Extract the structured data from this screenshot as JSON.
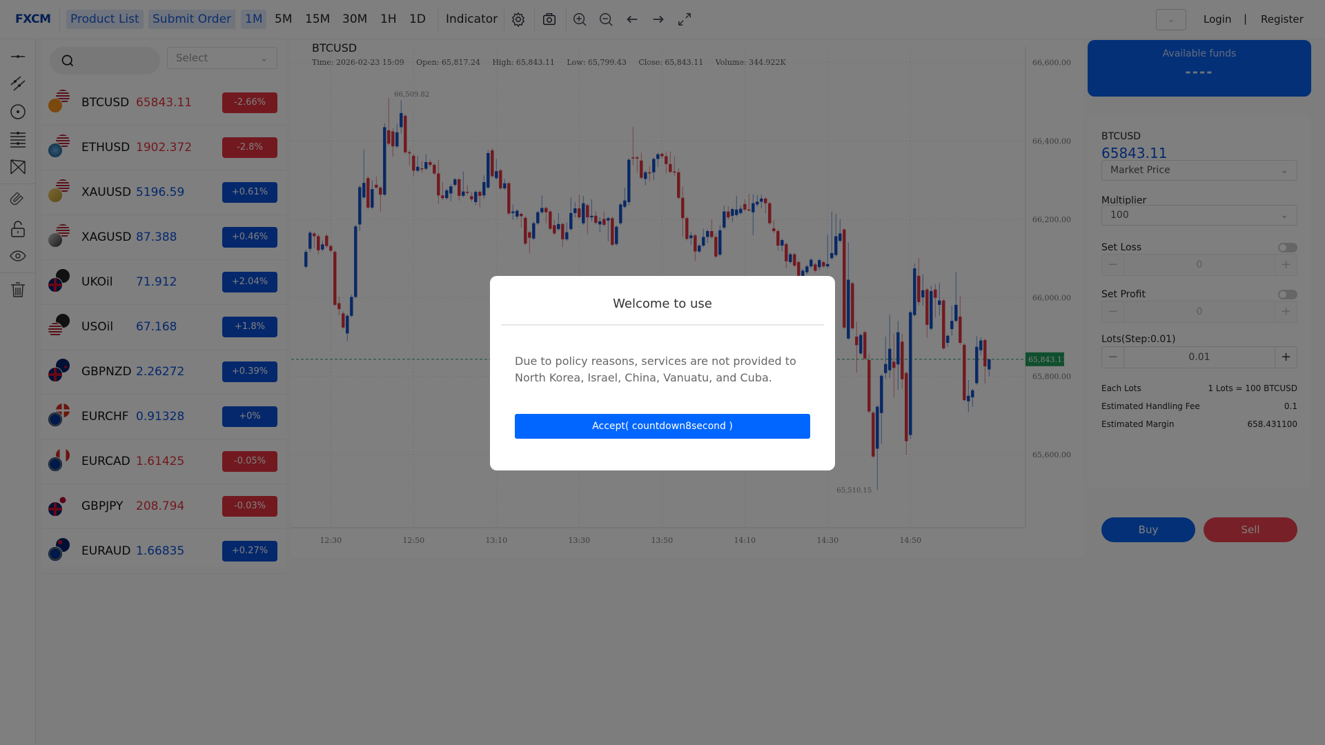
{
  "header": {
    "logo": "FXCM",
    "nav": [
      "Product List",
      "Submit Order"
    ],
    "timeframes": [
      "1M",
      "5M",
      "15M",
      "30M",
      "1H",
      "1D"
    ],
    "selected_timeframe": "1M",
    "indicator": "Indicator",
    "login": "Login",
    "divider": "|",
    "register": "Register"
  },
  "list": {
    "select_placeholder": "Select",
    "items": [
      {
        "symbol": "BTCUSD",
        "price": "65843.11",
        "change": "-2.66%",
        "dir": "down",
        "flags": [
          "us",
          "btc"
        ]
      },
      {
        "symbol": "ETHUSD",
        "price": "1902.372",
        "change": "-2.8%",
        "dir": "down",
        "flags": [
          "us",
          "eth"
        ]
      },
      {
        "symbol": "XAUUSD",
        "price": "5196.59",
        "change": "+0.61%",
        "dir": "up",
        "flags": [
          "us",
          "gold"
        ]
      },
      {
        "symbol": "XAGUSD",
        "price": "87.388",
        "change": "+0.46%",
        "dir": "up",
        "flags": [
          "us",
          "silver"
        ]
      },
      {
        "symbol": "UKOil",
        "price": "71.912",
        "change": "+2.04%",
        "dir": "up",
        "flags": [
          "oil",
          "gb"
        ]
      },
      {
        "symbol": "USOil",
        "price": "67.168",
        "change": "+1.8%",
        "dir": "up",
        "flags": [
          "oil",
          "us"
        ]
      },
      {
        "symbol": "GBPNZD",
        "price": "2.26272",
        "change": "+0.39%",
        "dir": "up",
        "flags": [
          "nz",
          "gb"
        ]
      },
      {
        "symbol": "EURCHF",
        "price": "0.91328",
        "change": "+0%",
        "dir": "up",
        "flags": [
          "ch",
          "eu"
        ]
      },
      {
        "symbol": "EURCAD",
        "price": "1.61425",
        "change": "-0.05%",
        "dir": "down",
        "flags": [
          "ca",
          "eu"
        ]
      },
      {
        "symbol": "GBPJPY",
        "price": "208.794",
        "change": "-0.03%",
        "dir": "down",
        "flags": [
          "jp",
          "gb"
        ]
      },
      {
        "symbol": "EURAUD",
        "price": "1.66835",
        "change": "+0.27%",
        "dir": "up",
        "flags": [
          "au",
          "eu"
        ]
      }
    ]
  },
  "colors": {
    "up": "#0a50d8",
    "down": "#e5323f",
    "accent": "#0066ff",
    "last_price": "#1f9e5a"
  },
  "chart": {
    "symbol": "BTCUSD",
    "ohlc_line": {
      "time": "Time: 2026-02-23 15:09",
      "open": "Open: 65,817.24",
      "high": "High: 65,843.11",
      "low": "Low: 65,799.43",
      "close": "Close: 65,843.11",
      "volume": "Volume: 344.922K"
    }
  },
  "chart_data": {
    "type": "candlestick",
    "interval": "1m",
    "start_time": "12:24",
    "end_time": "15:09",
    "ylim": [
      65450,
      66630
    ],
    "yticks": [
      "65,600.00",
      "65,800.00",
      "66,000.00",
      "66,200.00",
      "66,400.00",
      "66,600.00"
    ],
    "ytick_values": [
      65600,
      65800,
      66000,
      66200,
      66400,
      66600
    ],
    "xticks": [
      "12:30",
      "12:50",
      "13:10",
      "13:30",
      "13:50",
      "14:10",
      "14:30",
      "14:50"
    ],
    "last_price": "65,843.11",
    "last_price_value": 65843.11,
    "annotations": [
      {
        "label": "66,509.82",
        "value": 66509.82,
        "type": "high"
      },
      {
        "label": "65,510.15",
        "value": 65510.15,
        "type": "low"
      }
    ],
    "grid": true,
    "up_color": "blue",
    "down_color": "red",
    "ohlc": [
      [
        66079,
        66123,
        66075,
        66117
      ],
      [
        66125,
        66170,
        66117,
        66166
      ],
      [
        66164,
        66168,
        66126,
        66157
      ],
      [
        66157,
        66162,
        66110,
        66121
      ],
      [
        66123,
        66146,
        66118,
        66136
      ],
      [
        66158,
        66163,
        66128,
        66132
      ],
      [
        66132,
        66136,
        66115,
        66120
      ],
      [
        66117,
        66121,
        65978,
        65982
      ],
      [
        65986,
        66003,
        65956,
        65971
      ],
      [
        65960,
        65965,
        65921,
        65924
      ],
      [
        65909,
        65958,
        65889,
        65954
      ],
      [
        65954,
        66008,
        65950,
        66002
      ],
      [
        66002,
        66186,
        65998,
        66182
      ],
      [
        66187,
        66287,
        66170,
        66282
      ],
      [
        66256,
        66378,
        66252,
        66293
      ],
      [
        66305,
        66310,
        66226,
        66230
      ],
      [
        66230,
        66300,
        66226,
        66277
      ],
      [
        66288,
        66309,
        66278,
        66281
      ],
      [
        66281,
        66285,
        66220,
        66263
      ],
      [
        66263,
        66445,
        66259,
        66435
      ],
      [
        66427,
        66510,
        66388,
        66393
      ],
      [
        66424,
        66432,
        66360,
        66386
      ],
      [
        66386,
        66444,
        66382,
        66422
      ],
      [
        66435,
        66504,
        66419,
        66471
      ],
      [
        66464,
        66468,
        66366,
        66371
      ],
      [
        66371,
        66377,
        66337,
        66369
      ],
      [
        66362,
        66367,
        66310,
        66324
      ],
      [
        66324,
        66361,
        66320,
        66334
      ],
      [
        66330,
        66349,
        66319,
        66329
      ],
      [
        66329,
        66366,
        66325,
        66346
      ],
      [
        66346,
        66352,
        66334,
        66339
      ],
      [
        66339,
        66343,
        66313,
        66317
      ],
      [
        66317,
        66352,
        66240,
        66261
      ],
      [
        66261,
        66295,
        66249,
        66254
      ],
      [
        66254,
        66278,
        66250,
        66274
      ],
      [
        66266,
        66289,
        66246,
        66284
      ],
      [
        66288,
        66306,
        66284,
        66302
      ],
      [
        66302,
        66306,
        66248,
        66260
      ],
      [
        66260,
        66322,
        66256,
        66271
      ],
      [
        66270,
        66287,
        66262,
        66268
      ],
      [
        66259,
        66270,
        66245,
        66251
      ],
      [
        66244,
        66274,
        66236,
        66270
      ],
      [
        66270,
        66274,
        66231,
        66260
      ],
      [
        66261,
        66312,
        66253,
        66295
      ],
      [
        66281,
        66377,
        66277,
        66369
      ],
      [
        66376,
        66382,
        66306,
        66310
      ],
      [
        66305,
        66354,
        66301,
        66323
      ],
      [
        66325,
        66329,
        66275,
        66279
      ],
      [
        66279,
        66303,
        66275,
        66292
      ],
      [
        66292,
        66296,
        66211,
        66215
      ],
      [
        66216,
        66238,
        66199,
        66220
      ],
      [
        66207,
        66226,
        66200,
        66222
      ],
      [
        66214,
        66218,
        66179,
        66208
      ],
      [
        66204,
        66208,
        66134,
        66138
      ],
      [
        66167,
        66171,
        66113,
        66153
      ],
      [
        66151,
        66194,
        66147,
        66190
      ],
      [
        66190,
        66222,
        66186,
        66218
      ],
      [
        66218,
        66261,
        66214,
        66229
      ],
      [
        66229,
        66233,
        66190,
        66218
      ],
      [
        66220,
        66224,
        66172,
        66176
      ],
      [
        66185,
        66198,
        66160,
        66164
      ],
      [
        66175,
        66216,
        66171,
        66188
      ],
      [
        66188,
        66192,
        66129,
        66149
      ],
      [
        66149,
        66192,
        66145,
        66167
      ],
      [
        66175,
        66256,
        66171,
        66216
      ],
      [
        66216,
        66244,
        66205,
        66228
      ],
      [
        66228,
        66263,
        66201,
        66205
      ],
      [
        66190,
        66260,
        66186,
        66241
      ],
      [
        66236,
        66240,
        66162,
        66205
      ],
      [
        66205,
        66251,
        66195,
        66209
      ],
      [
        66209,
        66221,
        66187,
        66191
      ],
      [
        66187,
        66205,
        66167,
        66195
      ],
      [
        66201,
        66220,
        66182,
        66186
      ],
      [
        66197,
        66207,
        66144,
        66203
      ],
      [
        66203,
        66207,
        66131,
        66135
      ],
      [
        66137,
        66185,
        66133,
        66181
      ],
      [
        66190,
        66242,
        66186,
        66238
      ],
      [
        66232,
        66281,
        66228,
        66248
      ],
      [
        66244,
        66356,
        66236,
        66352
      ],
      [
        66358,
        66436,
        66338,
        66357
      ],
      [
        66358,
        66362,
        66319,
        66355
      ],
      [
        66350,
        66370,
        66302,
        66306
      ],
      [
        66303,
        66324,
        66287,
        66320
      ],
      [
        66320,
        66336,
        66297,
        66318
      ],
      [
        66320,
        66358,
        66300,
        66354
      ],
      [
        66354,
        66370,
        66334,
        66366
      ],
      [
        66367,
        66371,
        66355,
        66361
      ],
      [
        66361,
        66372,
        66317,
        66341
      ],
      [
        66341,
        66373,
        66317,
        66321
      ],
      [
        66322,
        66360,
        66311,
        66320
      ],
      [
        66320,
        66330,
        66251,
        66255
      ],
      [
        66255,
        66284,
        66155,
        66203
      ],
      [
        66203,
        66207,
        66146,
        66150
      ],
      [
        66152,
        66168,
        66135,
        66159
      ],
      [
        66159,
        66163,
        66094,
        66118
      ],
      [
        66118,
        66137,
        66114,
        66133
      ],
      [
        66133,
        66176,
        66129,
        66155
      ],
      [
        66155,
        66174,
        66139,
        66170
      ],
      [
        66170,
        66200,
        66151,
        66155
      ],
      [
        66155,
        66164,
        66101,
        66105
      ],
      [
        66110,
        66185,
        66106,
        66172
      ],
      [
        66179,
        66235,
        66175,
        66220
      ],
      [
        66220,
        66233,
        66199,
        66205
      ],
      [
        66209,
        66230,
        66193,
        66226
      ],
      [
        66211,
        66260,
        66207,
        66225
      ],
      [
        66216,
        66236,
        66212,
        66227
      ],
      [
        66239,
        66251,
        66221,
        66225
      ],
      [
        66225,
        66265,
        66221,
        66223
      ],
      [
        66218,
        66264,
        66159,
        66241
      ],
      [
        66238,
        66262,
        66232,
        66245
      ],
      [
        66245,
        66263,
        66228,
        66253
      ],
      [
        66253,
        66257,
        66215,
        66241
      ],
      [
        66241,
        66245,
        66186,
        66190
      ],
      [
        66177,
        66198,
        66165,
        66170
      ],
      [
        66170,
        66175,
        66120,
        66133
      ],
      [
        66133,
        66151,
        66118,
        66147
      ],
      [
        66137,
        66141,
        66075,
        66093
      ],
      [
        66091,
        66115,
        66087,
        66111
      ],
      [
        66111,
        66115,
        66078,
        66082
      ],
      [
        66091,
        66095,
        66050,
        66055
      ],
      [
        66040,
        66074,
        66035,
        66069
      ],
      [
        66065,
        66084,
        66060,
        66080
      ],
      [
        66080,
        66101,
        66076,
        66097
      ],
      [
        66085,
        66089,
        66065,
        66069
      ],
      [
        66078,
        66100,
        66070,
        66096
      ],
      [
        66091,
        66095,
        66076,
        66080
      ],
      [
        66080,
        66160,
        66076,
        66086
      ],
      [
        66101,
        66220,
        66097,
        66114
      ],
      [
        66109,
        66214,
        66105,
        66157
      ],
      [
        66145,
        66200,
        66141,
        66164
      ],
      [
        66174,
        66178,
        65920,
        65924
      ],
      [
        65896,
        66141,
        65892,
        66046
      ],
      [
        66037,
        66041,
        65918,
        65922
      ],
      [
        65901,
        65939,
        65809,
        65879
      ],
      [
        65858,
        65909,
        65854,
        65905
      ],
      [
        65912,
        65916,
        65841,
        65845
      ],
      [
        65841,
        65858,
        65706,
        65710
      ],
      [
        65707,
        65711,
        65591,
        65595
      ],
      [
        65615,
        65726,
        65510,
        65722
      ],
      [
        65706,
        65805,
        65627,
        65801
      ],
      [
        65808,
        65901,
        65794,
        65831
      ],
      [
        65815,
        65957,
        65795,
        65870
      ],
      [
        65837,
        65908,
        65746,
        65821
      ],
      [
        65830,
        65941,
        65765,
        65912
      ],
      [
        65888,
        65908,
        65768,
        65792
      ],
      [
        65808,
        65812,
        65600,
        65634
      ],
      [
        65650,
        65967,
        65640,
        65963
      ],
      [
        65956,
        66087,
        65952,
        66075
      ],
      [
        66056,
        66101,
        65980,
        65989
      ],
      [
        66001,
        66060,
        65980,
        66019
      ],
      [
        66021,
        66026,
        65898,
        65931
      ],
      [
        65921,
        66031,
        65917,
        66017
      ],
      [
        66021,
        66035,
        65950,
        66000
      ],
      [
        65982,
        66038,
        65955,
        65993
      ],
      [
        65993,
        65997,
        65867,
        65871
      ],
      [
        65885,
        65907,
        65875,
        65903
      ],
      [
        65920,
        65980,
        65903,
        65941
      ],
      [
        65941,
        66065,
        65937,
        65982
      ],
      [
        65952,
        66004,
        65880,
        65885
      ],
      [
        65880,
        65884,
        65735,
        65739
      ],
      [
        65736,
        65790,
        65708,
        65750
      ],
      [
        65746,
        65768,
        65722,
        65764
      ],
      [
        65782,
        65902,
        65778,
        65875
      ],
      [
        65866,
        65899,
        65853,
        65891
      ],
      [
        65892,
        65896,
        65781,
        65825
      ],
      [
        65817.24,
        65843.11,
        65799.43,
        65843.11
      ]
    ]
  },
  "order": {
    "funds_label": "Available funds",
    "funds_value": "----",
    "symbol": "BTCUSD",
    "price": "65843.11",
    "price_type": "Market Price",
    "multiplier_label": "Multiplier",
    "multiplier": "100",
    "set_loss": "Set Loss",
    "loss_value": "0",
    "set_profit": "Set Profit",
    "profit_value": "0",
    "lots_label": "Lots(Step:0.01)",
    "lots_value": "0.01",
    "minus": "−",
    "plus": "+",
    "info": [
      {
        "k": "Each Lots",
        "v": "1 Lots = 100 BTCUSD"
      },
      {
        "k": "Estimated Handling Fee",
        "v": "0.1"
      },
      {
        "k": "Estimated Margin",
        "v": "658.431100"
      }
    ],
    "buy": "Buy",
    "sell": "Sell"
  },
  "modal": {
    "title": "Welcome to use",
    "text": "Due to policy reasons, services are not provided to North Korea, Israel, China, Vanuatu, and Cuba.",
    "accept": "Accept( countdown8second )"
  }
}
